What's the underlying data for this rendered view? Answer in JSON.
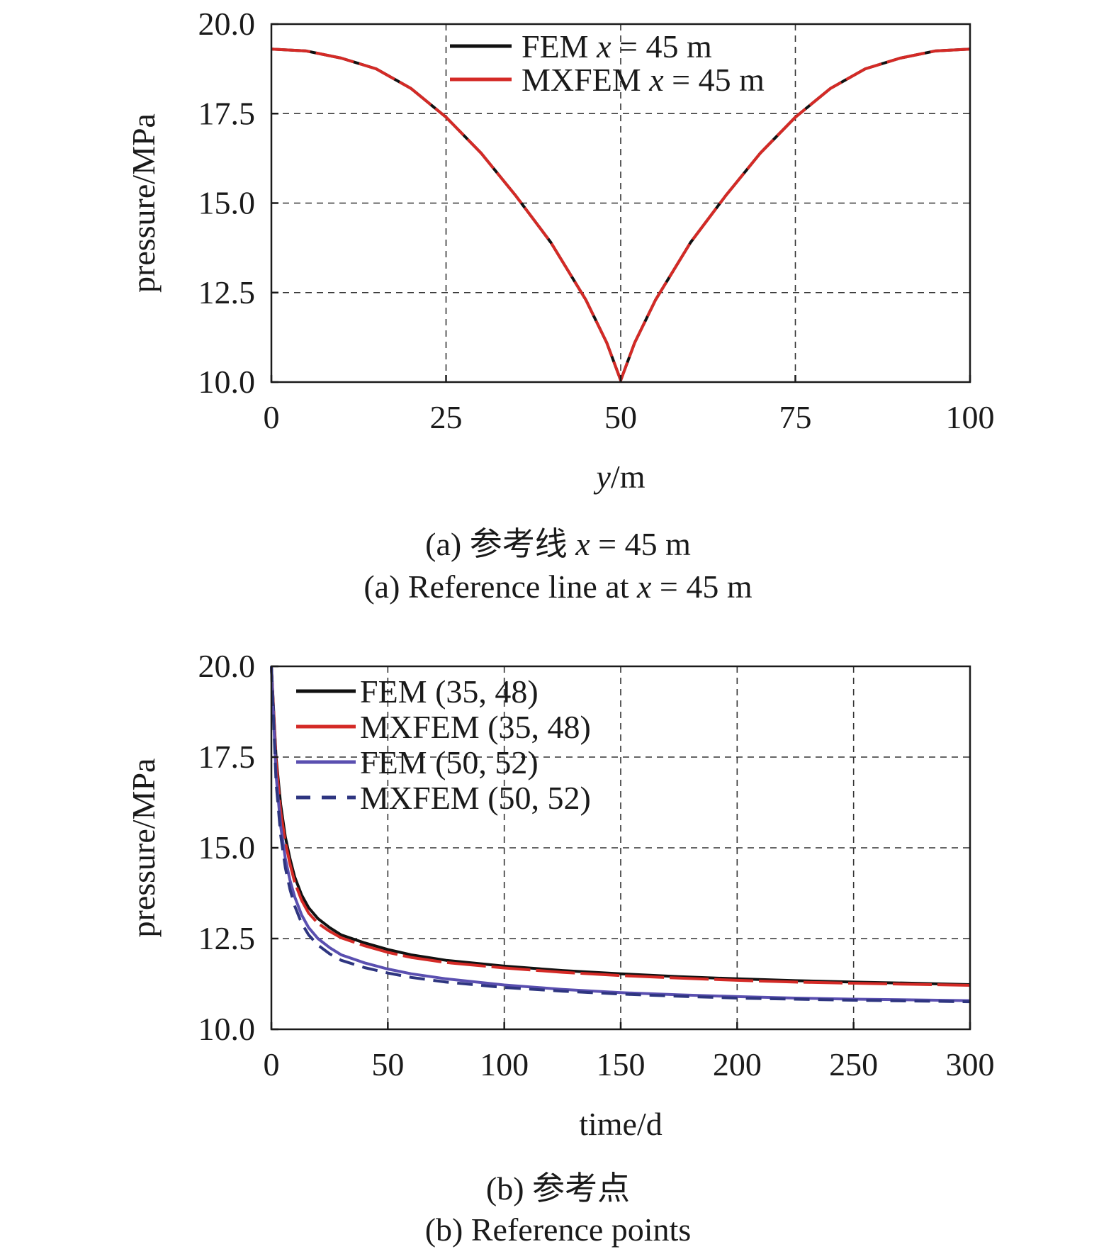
{
  "chart_data": [
    {
      "type": "line",
      "xlabel": "y/m",
      "ylabel": "pressure/MPa",
      "xlim": [
        0,
        100
      ],
      "ylim": [
        10,
        20
      ],
      "x_ticks": [
        "0",
        "25",
        "50",
        "75",
        "100"
      ],
      "y_ticks": [
        "10.0",
        "12.5",
        "15.0",
        "17.5",
        "20.0"
      ],
      "grid": true,
      "legend_position": "top-center",
      "caption_cn": "(a) 参考线 x = 45 m",
      "caption_en": "(a) Reference line at x = 45 m",
      "series": [
        {
          "name": "FEM x = 45 m",
          "color": "#111111",
          "dash": "solid",
          "x": [
            0,
            5,
            10,
            15,
            20,
            25,
            30,
            35,
            40,
            45,
            48,
            50,
            52,
            55,
            60,
            65,
            70,
            75,
            80,
            85,
            90,
            95,
            100
          ],
          "y": [
            19.3,
            19.25,
            19.05,
            18.75,
            18.2,
            17.4,
            16.4,
            15.2,
            13.9,
            12.3,
            11.1,
            10.05,
            11.1,
            12.3,
            13.9,
            15.2,
            16.4,
            17.4,
            18.2,
            18.75,
            19.05,
            19.25,
            19.3
          ]
        },
        {
          "name": "MXFEM x = 45 m",
          "color": "#d42a26",
          "dash": "long-dash",
          "x": [
            0,
            5,
            10,
            15,
            20,
            25,
            30,
            35,
            40,
            45,
            48,
            50,
            52,
            55,
            60,
            65,
            70,
            75,
            80,
            85,
            90,
            95,
            100
          ],
          "y": [
            19.3,
            19.25,
            19.05,
            18.75,
            18.2,
            17.4,
            16.4,
            15.2,
            13.9,
            12.3,
            11.1,
            10.05,
            11.1,
            12.3,
            13.9,
            15.2,
            16.4,
            17.4,
            18.2,
            18.75,
            19.05,
            19.25,
            19.3
          ]
        }
      ]
    },
    {
      "type": "line",
      "xlabel": "time/d",
      "ylabel": "pressure/MPa",
      "xlim": [
        0,
        300
      ],
      "ylim": [
        10,
        20
      ],
      "x_ticks": [
        "0",
        "50",
        "100",
        "150",
        "200",
        "250",
        "300"
      ],
      "y_ticks": [
        "10.0",
        "12.5",
        "15.0",
        "17.5",
        "20.0"
      ],
      "grid": true,
      "legend_position": "top-left",
      "caption_cn": "(b) 参考点",
      "caption_en": "(b) Reference points",
      "series": [
        {
          "name": "FEM (35, 48)",
          "color": "#111111",
          "dash": "solid",
          "x": [
            0,
            2,
            4,
            6,
            8,
            10,
            13,
            16,
            20,
            25,
            30,
            40,
            50,
            60,
            75,
            100,
            125,
            150,
            175,
            200,
            225,
            250,
            275,
            300
          ],
          "y": [
            20.0,
            17.5,
            16.2,
            15.3,
            14.7,
            14.2,
            13.7,
            13.35,
            13.05,
            12.8,
            12.6,
            12.38,
            12.2,
            12.05,
            11.9,
            11.74,
            11.62,
            11.53,
            11.45,
            11.39,
            11.34,
            11.3,
            11.27,
            11.23
          ]
        },
        {
          "name": "MXFEM (35, 48)",
          "color": "#d42a26",
          "dash": "long-dash",
          "x": [
            0,
            2,
            4,
            6,
            8,
            10,
            13,
            16,
            20,
            25,
            30,
            40,
            50,
            60,
            75,
            100,
            125,
            150,
            175,
            200,
            225,
            250,
            275,
            300
          ],
          "y": [
            20.0,
            17.4,
            16.0,
            15.15,
            14.55,
            14.05,
            13.55,
            13.2,
            12.92,
            12.7,
            12.52,
            12.3,
            12.12,
            11.98,
            11.84,
            11.69,
            11.57,
            11.48,
            11.41,
            11.35,
            11.3,
            11.27,
            11.24,
            11.21
          ]
        },
        {
          "name": "FEM (50, 52)",
          "color": "#5a4fb0",
          "dash": "solid",
          "x": [
            0,
            2,
            4,
            6,
            8,
            10,
            13,
            16,
            20,
            25,
            30,
            40,
            50,
            60,
            75,
            100,
            125,
            150,
            175,
            200,
            225,
            250,
            275,
            300
          ],
          "y": [
            20.0,
            17.0,
            15.6,
            14.7,
            14.1,
            13.65,
            13.15,
            12.8,
            12.5,
            12.25,
            12.05,
            11.83,
            11.66,
            11.53,
            11.39,
            11.22,
            11.1,
            11.01,
            10.95,
            10.9,
            10.86,
            10.83,
            10.81,
            10.79
          ]
        },
        {
          "name": "MXFEM (50, 52)",
          "color": "#2e3580",
          "dash": "dash",
          "x": [
            0,
            2,
            4,
            6,
            8,
            10,
            13,
            16,
            20,
            25,
            30,
            40,
            50,
            60,
            75,
            100,
            125,
            150,
            175,
            200,
            225,
            250,
            275,
            300
          ],
          "y": [
            20.0,
            16.8,
            15.35,
            14.45,
            13.85,
            13.4,
            12.92,
            12.6,
            12.32,
            12.08,
            11.9,
            11.7,
            11.55,
            11.43,
            11.3,
            11.15,
            11.05,
            10.97,
            10.91,
            10.86,
            10.83,
            10.8,
            10.78,
            10.76
          ]
        }
      ]
    }
  ]
}
